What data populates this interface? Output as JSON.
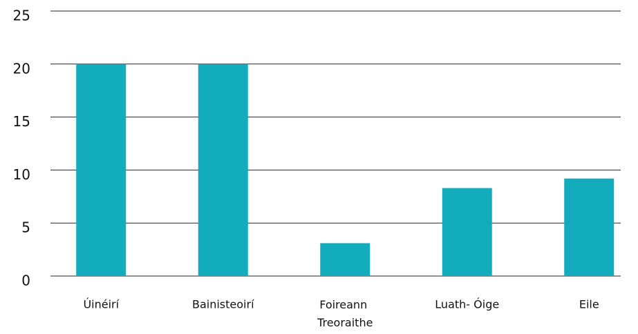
{
  "chart_data": {
    "type": "bar",
    "categories": [
      "Úinéirí",
      "Bainisteoirí",
      "Foireann Treoraithe",
      "Luath- Óige",
      "Eile"
    ],
    "values": [
      20,
      20,
      3.1,
      8.3,
      9.2
    ],
    "color": "#12acbd",
    "ylim": [
      0,
      25
    ],
    "yticks": [
      0,
      5,
      10,
      15,
      20,
      25
    ],
    "grid": true
  }
}
